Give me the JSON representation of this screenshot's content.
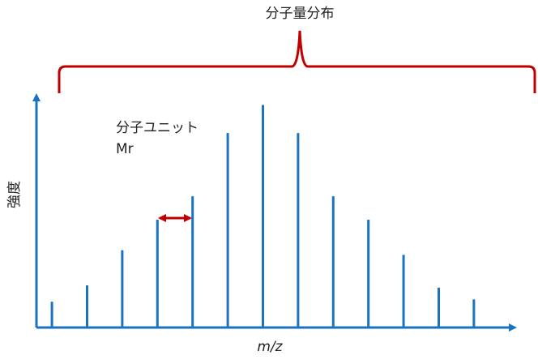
{
  "chart_data": {
    "type": "stem",
    "title": "分子量分布",
    "annotation": [
      "分子ユニット",
      "Mr"
    ],
    "ylabel": "強度",
    "xlabel": "m/z",
    "x": [
      1,
      2,
      3,
      4,
      5,
      6,
      7,
      8,
      9,
      10,
      11,
      12,
      13
    ],
    "values": [
      11,
      18,
      33,
      46,
      56,
      83,
      95,
      83,
      56,
      46,
      31,
      17,
      12
    ],
    "xlim": [
      0.56,
      14.04
    ],
    "ylim": [
      0,
      100
    ],
    "color": "#1a72c0",
    "accent_color": "#c00000"
  }
}
